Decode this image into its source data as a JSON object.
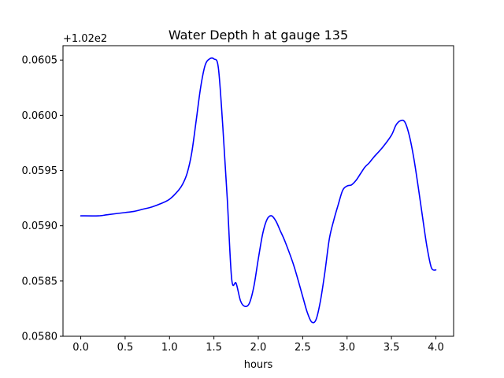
{
  "chart_data": {
    "type": "line",
    "title": "Water Depth h at gauge 135",
    "xlabel": "hours",
    "ylabel": "",
    "y_offset_label": "+1.02e2",
    "xlim": [
      -0.2,
      4.2
    ],
    "ylim": [
      0.058,
      0.06063
    ],
    "x_ticks": [
      0.0,
      0.5,
      1.0,
      1.5,
      2.0,
      2.5,
      3.0,
      3.5,
      4.0
    ],
    "x_tick_labels": [
      "0.0",
      "0.5",
      "1.0",
      "1.5",
      "2.0",
      "2.5",
      "3.0",
      "3.5",
      "4.0"
    ],
    "y_ticks": [
      0.058,
      0.0585,
      0.059,
      0.0595,
      0.06,
      0.0605
    ],
    "y_tick_labels": [
      "0.0580",
      "0.0585",
      "0.0590",
      "0.0595",
      "0.0600",
      "0.0605"
    ],
    "grid": false,
    "series": [
      {
        "color": "#0000ff",
        "x": [
          0.0,
          0.2,
          0.3,
          0.5,
          0.6,
          0.7,
          0.8,
          0.9,
          1.0,
          1.1,
          1.15,
          1.2,
          1.25,
          1.3,
          1.35,
          1.4,
          1.45,
          1.5,
          1.55,
          1.6,
          1.65,
          1.7,
          1.75,
          1.8,
          1.85,
          1.9,
          1.95,
          2.0,
          2.05,
          2.1,
          2.15,
          2.2,
          2.25,
          2.3,
          2.4,
          2.5,
          2.55,
          2.6,
          2.65,
          2.7,
          2.75,
          2.8,
          2.85,
          2.9,
          2.95,
          3.0,
          3.05,
          3.1,
          3.15,
          3.2,
          3.25,
          3.3,
          3.4,
          3.5,
          3.55,
          3.6,
          3.65,
          3.7,
          3.75,
          3.8,
          3.85,
          3.9,
          3.95,
          4.0
        ],
        "values": [
          0.05909,
          0.05909,
          0.0591,
          0.05912,
          0.05913,
          0.05915,
          0.05917,
          0.0592,
          0.05924,
          0.05932,
          0.05938,
          0.05948,
          0.05966,
          0.05995,
          0.06025,
          0.06045,
          0.06051,
          0.06051,
          0.06043,
          0.0599,
          0.05925,
          0.05852,
          0.05848,
          0.05832,
          0.05827,
          0.0583,
          0.05845,
          0.0587,
          0.05893,
          0.05906,
          0.05909,
          0.05904,
          0.05895,
          0.05886,
          0.05864,
          0.05836,
          0.05822,
          0.05813,
          0.05815,
          0.05832,
          0.05858,
          0.05888,
          0.05905,
          0.05919,
          0.05932,
          0.05936,
          0.05937,
          0.05941,
          0.05947,
          0.05953,
          0.05957,
          0.05962,
          0.05971,
          0.05982,
          0.05991,
          0.05995,
          0.05994,
          0.05982,
          0.05962,
          0.05936,
          0.05908,
          0.05881,
          0.05862,
          0.0586
        ]
      }
    ]
  }
}
